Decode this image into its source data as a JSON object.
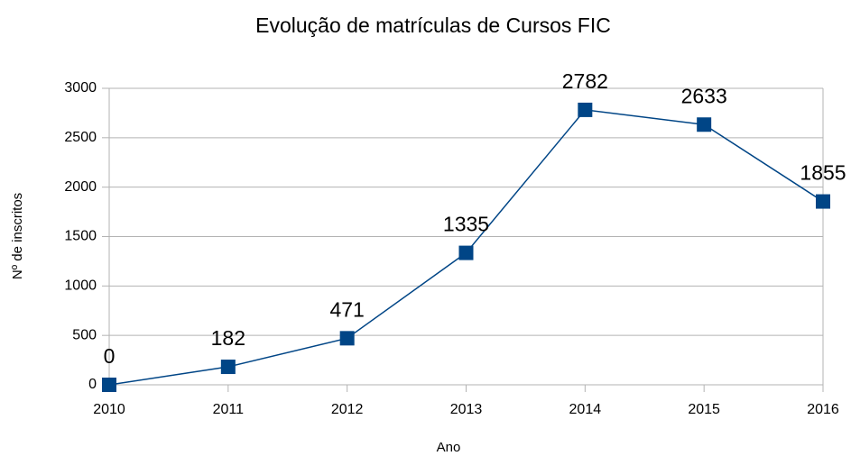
{
  "chart_data": {
    "type": "line",
    "title": "Evolução de matrículas de Cursos FIC",
    "x_label": "Ano",
    "y_label": "Nº de inscritos",
    "x": [
      2010,
      2011,
      2012,
      2013,
      2014,
      2015,
      2016
    ],
    "values": [
      0,
      182,
      471,
      1335,
      2782,
      2633,
      1855
    ],
    "color": "#004586",
    "xlim": [
      2010,
      2016
    ],
    "xticks": [
      2010,
      2011,
      2012,
      2013,
      2014,
      2015,
      2016
    ],
    "ylim": [
      0,
      3000
    ],
    "yticks": [
      0,
      500,
      1000,
      1500,
      2000,
      2500,
      3000
    ],
    "grid": true
  }
}
